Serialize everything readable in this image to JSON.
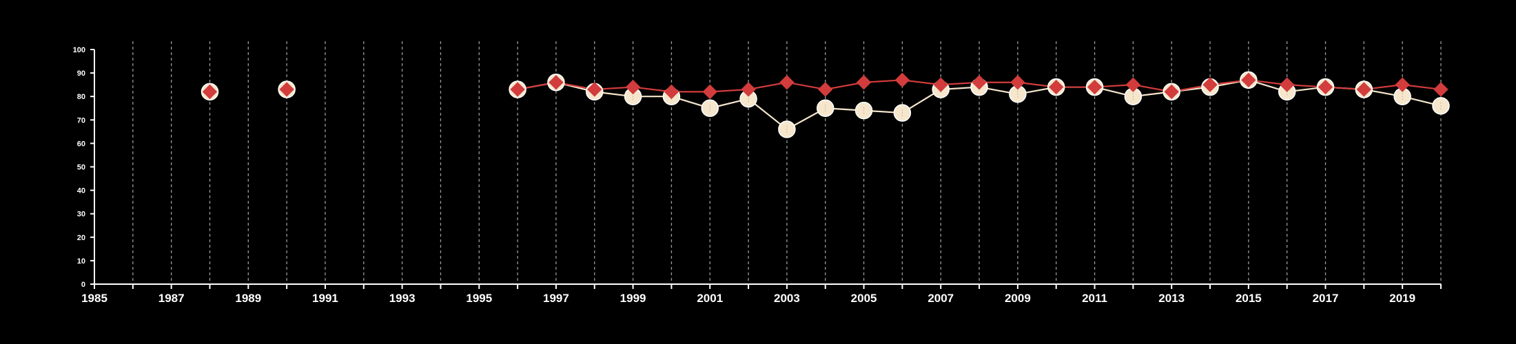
{
  "chart_data": {
    "type": "line",
    "title": "",
    "xlabel": "",
    "ylabel": "",
    "xlim": [
      1985,
      2020
    ],
    "ylim": [
      0,
      100
    ],
    "x_ticks": [
      "1985",
      "1987",
      "1989",
      "1991",
      "1993",
      "1995",
      "1997",
      "1999",
      "2001",
      "2003",
      "2005",
      "2007",
      "2009",
      "2011",
      "2013",
      "2015",
      "2017",
      "2019"
    ],
    "y_ticks": [
      "0",
      "10",
      "20",
      "30",
      "40",
      "50",
      "60",
      "70",
      "80",
      "90",
      "100"
    ],
    "grid": "vertical dashed lines at each year",
    "background": "#000000",
    "series": [
      {
        "color": "#f5e6cc",
        "marker": "circle",
        "points": [
          {
            "x": 1988,
            "y": 82
          },
          {
            "x": 1990,
            "y": 83
          },
          {
            "x": 1996,
            "y": 83
          },
          {
            "x": 1997,
            "y": 86
          },
          {
            "x": 1998,
            "y": 82
          },
          {
            "x": 1999,
            "y": 80
          },
          {
            "x": 2000,
            "y": 80
          },
          {
            "x": 2001,
            "y": 75
          },
          {
            "x": 2002,
            "y": 79
          },
          {
            "x": 2003,
            "y": 66
          },
          {
            "x": 2004,
            "y": 75
          },
          {
            "x": 2005,
            "y": 74
          },
          {
            "x": 2006,
            "y": 73
          },
          {
            "x": 2007,
            "y": 83
          },
          {
            "x": 2008,
            "y": 84
          },
          {
            "x": 2009,
            "y": 81
          },
          {
            "x": 2010,
            "y": 84
          },
          {
            "x": 2011,
            "y": 84
          },
          {
            "x": 2012,
            "y": 80
          },
          {
            "x": 2013,
            "y": 82
          },
          {
            "x": 2014,
            "y": 84
          },
          {
            "x": 2015,
            "y": 87
          },
          {
            "x": 2016,
            "y": 82
          },
          {
            "x": 2017,
            "y": 84
          },
          {
            "x": 2018,
            "y": 83
          },
          {
            "x": 2019,
            "y": 80
          },
          {
            "x": 2020,
            "y": 76
          }
        ]
      },
      {
        "color": "#d23c3c",
        "marker": "diamond",
        "points": [
          {
            "x": 1988,
            "y": 82
          },
          {
            "x": 1990,
            "y": 83
          },
          {
            "x": 1996,
            "y": 83
          },
          {
            "x": 1997,
            "y": 86
          },
          {
            "x": 1998,
            "y": 83
          },
          {
            "x": 1999,
            "y": 84
          },
          {
            "x": 2000,
            "y": 82
          },
          {
            "x": 2001,
            "y": 82
          },
          {
            "x": 2002,
            "y": 83
          },
          {
            "x": 2003,
            "y": 86
          },
          {
            "x": 2004,
            "y": 83
          },
          {
            "x": 2005,
            "y": 86
          },
          {
            "x": 2006,
            "y": 87
          },
          {
            "x": 2007,
            "y": 85
          },
          {
            "x": 2008,
            "y": 86
          },
          {
            "x": 2009,
            "y": 86
          },
          {
            "x": 2010,
            "y": 84
          },
          {
            "x": 2011,
            "y": 84
          },
          {
            "x": 2012,
            "y": 85
          },
          {
            "x": 2013,
            "y": 82
          },
          {
            "x": 2014,
            "y": 85
          },
          {
            "x": 2015,
            "y": 87
          },
          {
            "x": 2016,
            "y": 85
          },
          {
            "x": 2017,
            "y": 84
          },
          {
            "x": 2018,
            "y": 83
          },
          {
            "x": 2019,
            "y": 85
          },
          {
            "x": 2020,
            "y": 83
          }
        ]
      }
    ]
  }
}
